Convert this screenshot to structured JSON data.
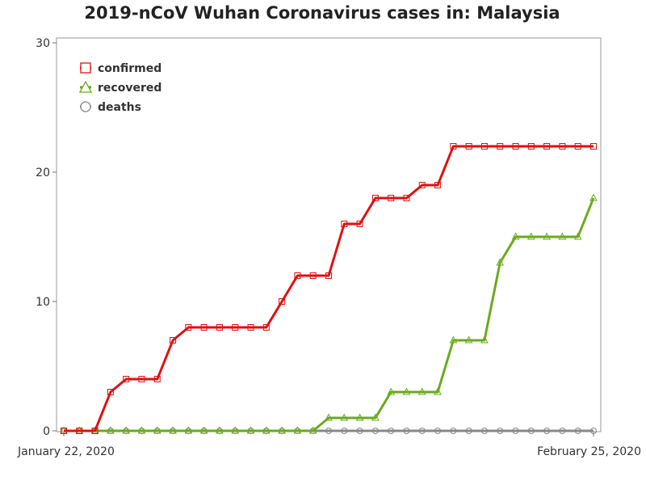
{
  "chart_data": {
    "type": "line",
    "title": "2019-nCoV Wuhan Coronavirus cases in: Malaysia",
    "xlabel": "",
    "ylabel": "",
    "x_tick_labels": [
      "January 22, 2020",
      "February 25, 2020"
    ],
    "x_start": "2020-01-22",
    "x_end": "2020-02-25",
    "ylim": [
      0,
      30
    ],
    "y_ticks": [
      0,
      10,
      20,
      30
    ],
    "grid": false,
    "legend_position": "top-left",
    "series": [
      {
        "name": "confirmed",
        "color": "#e01010",
        "marker": "square",
        "values": [
          0,
          0,
          0,
          3,
          4,
          4,
          4,
          7,
          8,
          8,
          8,
          8,
          8,
          8,
          10,
          12,
          12,
          12,
          16,
          16,
          18,
          18,
          18,
          19,
          19,
          22,
          22,
          22,
          22,
          22,
          22,
          22,
          22,
          22,
          22
        ]
      },
      {
        "name": "recovered",
        "color": "#6aaa1e",
        "marker": "triangle",
        "values": [
          0,
          0,
          0,
          0,
          0,
          0,
          0,
          0,
          0,
          0,
          0,
          0,
          0,
          0,
          0,
          0,
          0,
          1,
          1,
          1,
          1,
          3,
          3,
          3,
          3,
          7,
          7,
          7,
          13,
          15,
          15,
          15,
          15,
          15,
          18
        ]
      },
      {
        "name": "deaths",
        "color": "#888888",
        "marker": "circle",
        "values": [
          0,
          0,
          0,
          0,
          0,
          0,
          0,
          0,
          0,
          0,
          0,
          0,
          0,
          0,
          0,
          0,
          0,
          0,
          0,
          0,
          0,
          0,
          0,
          0,
          0,
          0,
          0,
          0,
          0,
          0,
          0,
          0,
          0,
          0,
          0
        ]
      }
    ]
  }
}
